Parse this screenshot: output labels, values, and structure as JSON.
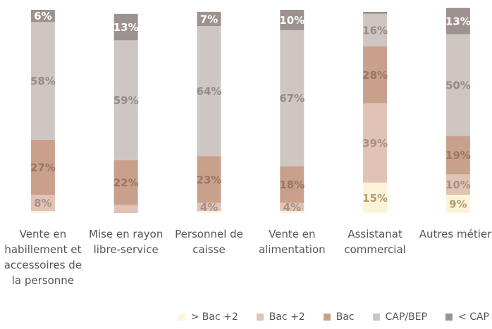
{
  "chart_data": {
    "type": "stacked_bar",
    "categories": [
      "Vente en habillement et accessoires de la personne",
      "Mise en rayon libre-service",
      "Personnel de caisse",
      "Vente en alimentation",
      "Assistanat commercial",
      "Autres métiers"
    ],
    "ylim": [
      0,
      100
    ],
    "legend": "bottom",
    "series": [
      {
        "name": "> Bac +2",
        "color": "#fdf3d9",
        "label_color": "#b19c6c",
        "values": [
          1,
          0,
          1,
          1,
          15,
          9
        ],
        "value_labels": [
          null,
          null,
          null,
          null,
          "15%",
          "9%"
        ]
      },
      {
        "name": "Bac +2",
        "color": "#e0c3b6",
        "label_color": "#a88f84",
        "values": [
          8,
          4,
          4,
          4,
          39,
          10
        ],
        "value_labels": [
          "8%",
          null,
          "4%",
          "4%",
          "39%",
          "10%"
        ]
      },
      {
        "name": "Bac",
        "color": "#c9a08c",
        "label_color": "#9a7664",
        "values": [
          27,
          22,
          23,
          18,
          28,
          19
        ],
        "value_labels": [
          "27%",
          "22%",
          "23%",
          "18%",
          "28%",
          "19%"
        ]
      },
      {
        "name": "CAP/BEP",
        "color": "#cec6c3",
        "label_color": "#958b87",
        "values": [
          58,
          59,
          64,
          67,
          16,
          50
        ],
        "value_labels": [
          "58%",
          "59%",
          "64%",
          "67%",
          "16%",
          "50%"
        ]
      },
      {
        "name": "< CAP",
        "color": "#9e928e",
        "label_color": "#ffffff",
        "values": [
          6,
          13,
          7,
          10,
          1,
          13
        ],
        "value_labels": [
          "6%",
          "13%",
          "7%",
          "10%",
          null,
          "13%"
        ]
      }
    ]
  }
}
